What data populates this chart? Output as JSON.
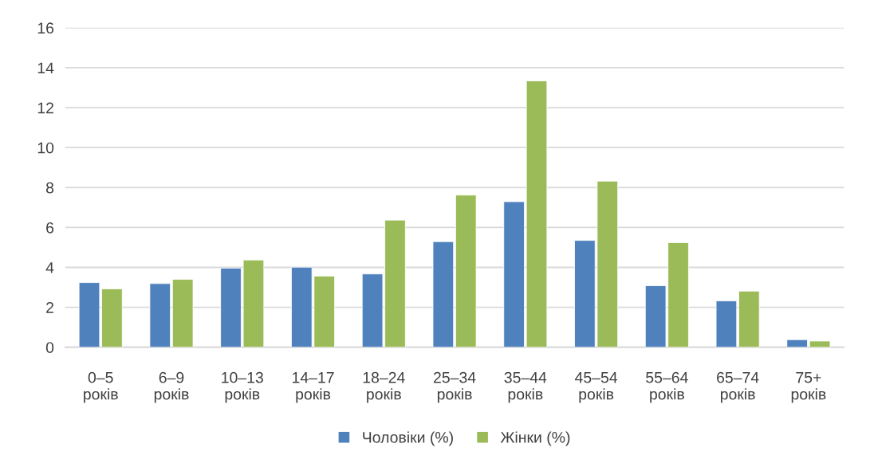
{
  "chart_data": {
    "type": "bar",
    "categories": [
      "0–5 років",
      "6–9 років",
      "10–13 років",
      "14–17 років",
      "18–24 років",
      "25–34 років",
      "35–44 років",
      "45–54 років",
      "55–64 років",
      "65–74 років",
      "75+ років"
    ],
    "series": [
      {
        "name": "Чоловіки (%)",
        "color": "#4f81bd",
        "values": [
          3.24,
          3.19,
          3.96,
          4.01,
          3.67,
          5.29,
          7.29,
          5.35,
          3.08,
          2.32,
          0.38
        ]
      },
      {
        "name": "Жінки (%)",
        "color": "#9bbb59",
        "values": [
          2.92,
          3.4,
          4.37,
          3.56,
          6.37,
          7.62,
          13.34,
          8.32,
          5.24,
          2.81,
          0.31
        ]
      }
    ],
    "ylim": [
      0,
      16
    ],
    "yticks": [
      0,
      2,
      4,
      6,
      8,
      10,
      12,
      14,
      16
    ],
    "grid": "y",
    "legend": "bottom"
  }
}
